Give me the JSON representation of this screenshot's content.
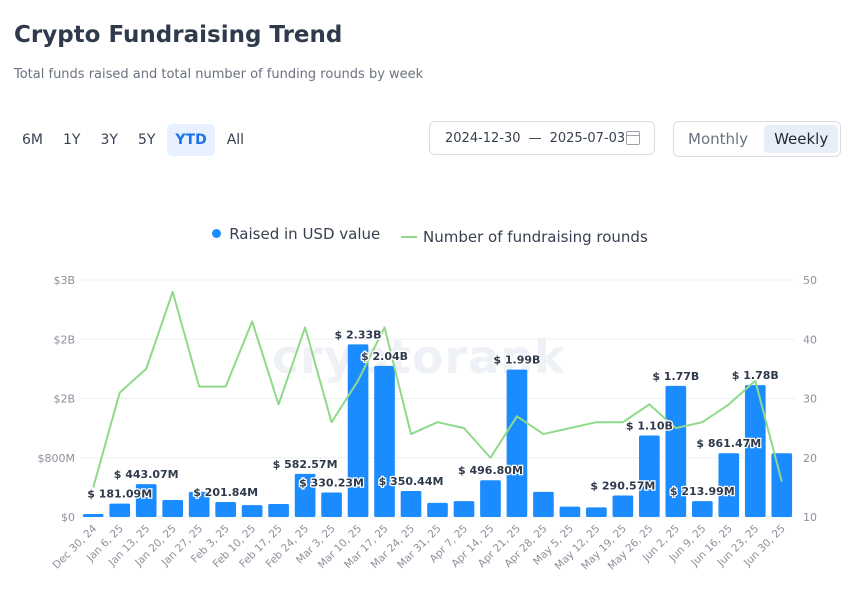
{
  "header": {
    "title": "Crypto Fundraising Trend",
    "subtitle": "Total funds raised and total number of funding rounds by week"
  },
  "ranges": [
    {
      "label": "6M",
      "active": false
    },
    {
      "label": "1Y",
      "active": false
    },
    {
      "label": "3Y",
      "active": false
    },
    {
      "label": "5Y",
      "active": false
    },
    {
      "label": "YTD",
      "active": true
    },
    {
      "label": "All",
      "active": false
    }
  ],
  "date_range": {
    "start": "2024-12-30",
    "separator": "—",
    "end": "2025-07-03",
    "icon": "calendar-icon"
  },
  "granularity": [
    {
      "label": "Monthly",
      "active": false
    },
    {
      "label": "Weekly",
      "active": true
    }
  ],
  "watermark": "cryptorank",
  "colors": {
    "bar": "#1a8cff",
    "line": "#90d98a",
    "accent": "#1a73e8"
  },
  "chart_data": {
    "type": "bar",
    "legend": [
      "Raised in USD value",
      "Number of fundraising rounds"
    ],
    "legend_position": "top-center",
    "categories": [
      "Dec 30, 24",
      "Jan 6, 25",
      "Jan 13, 25",
      "Jan 20, 25",
      "Jan 27, 25",
      "Feb 3, 25",
      "Feb 10, 25",
      "Feb 17, 25",
      "Feb 24, 25",
      "Mar 3, 25",
      "Mar 10, 25",
      "Mar 17, 25",
      "Mar 24, 25",
      "Mar 31, 25",
      "Apr 7, 25",
      "Apr 14, 25",
      "Apr 21, 25",
      "Apr 28, 25",
      "May 5, 25",
      "May 12, 25",
      "May 19, 25",
      "May 26, 25",
      "Jun 2, 25",
      "Jun 9, 25",
      "Jun 16, 25",
      "Jun 23, 25",
      "Jun 30, 25"
    ],
    "series": [
      {
        "name": "Raised in USD value",
        "type": "bar",
        "axis": "left",
        "values": [
          40,
          181.09,
          443.07,
          230,
          340,
          201.84,
          160,
          175,
          582.57,
          330.23,
          2330,
          2040,
          350.44,
          190,
          215,
          496.8,
          1990,
          340,
          140,
          130,
          290.57,
          1100,
          1770,
          213.99,
          861.47,
          1780,
          860
        ]
      },
      {
        "name": "Number of fundraising rounds",
        "type": "line",
        "axis": "right",
        "values": [
          15,
          31,
          35,
          48,
          32,
          32,
          43,
          29,
          42,
          26,
          33,
          42,
          24,
          26,
          25,
          20,
          27,
          24,
          25,
          26,
          26,
          29,
          25,
          26,
          29,
          33,
          16
        ]
      }
    ],
    "data_labels": [
      {
        "index": 1,
        "text": "$ 181.09M"
      },
      {
        "index": 2,
        "text": "$ 443.07M"
      },
      {
        "index": 5,
        "text": "$ 201.84M"
      },
      {
        "index": 8,
        "text": "$ 582.57M"
      },
      {
        "index": 9,
        "text": "$ 330.23M"
      },
      {
        "index": 10,
        "text": "$ 2.33B"
      },
      {
        "index": 11,
        "text": "$ 2.04B"
      },
      {
        "index": 12,
        "text": "$ 350.44M"
      },
      {
        "index": 15,
        "text": "$ 496.80M"
      },
      {
        "index": 16,
        "text": "$ 1.99B"
      },
      {
        "index": 20,
        "text": "$ 290.57M"
      },
      {
        "index": 21,
        "text": "$ 1.10B"
      },
      {
        "index": 22,
        "text": "$ 1.77B"
      },
      {
        "index": 23,
        "text": "$ 213.99M"
      },
      {
        "index": 24,
        "text": "$ 861.47M"
      },
      {
        "index": 25,
        "text": "$ 1.78B"
      }
    ],
    "y_left": {
      "ticks": [
        0,
        800,
        1600,
        2400,
        3200
      ],
      "tick_labels": [
        "$0",
        "$800M",
        "$2B",
        "$2B",
        "$3B"
      ],
      "ylim": [
        0,
        3200
      ]
    },
    "y_right": {
      "ticks": [
        10,
        20,
        30,
        40,
        50
      ],
      "tick_labels": [
        "10",
        "20",
        "30",
        "40",
        "50"
      ],
      "ylim": [
        10,
        50
      ]
    },
    "grid": true
  }
}
